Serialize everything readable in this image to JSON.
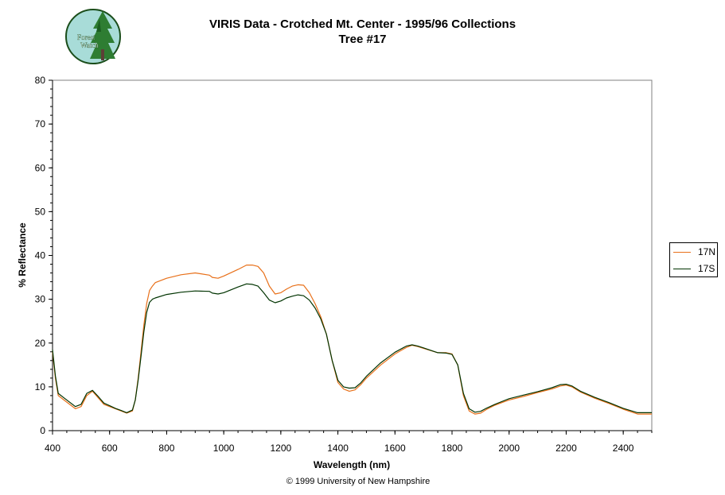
{
  "logo": {
    "text_top": "Forest",
    "text_bottom": "Watch",
    "ring_color": "#1a4d1a",
    "fill_color": "#a8dcd8"
  },
  "chart_data": {
    "type": "line",
    "title": "VIRIS Data - Crotched Mt. Center - 1995/96 Collections",
    "subtitle": "Tree #17",
    "xlabel": "Wavelength (nm)",
    "ylabel": "% Reflectance",
    "xlim": [
      400,
      2500
    ],
    "ylim": [
      0,
      80
    ],
    "xticks": [
      400,
      600,
      800,
      1000,
      1200,
      1400,
      1600,
      1800,
      2000,
      2200,
      2400
    ],
    "yticks": [
      0,
      10,
      20,
      30,
      40,
      50,
      60,
      70,
      80
    ],
    "grid": false,
    "legend_position": "right",
    "series": [
      {
        "name": "17N",
        "color": "#e8701a",
        "x": [
          400,
          410,
          420,
          440,
          460,
          480,
          500,
          520,
          540,
          560,
          580,
          600,
          620,
          640,
          660,
          680,
          690,
          700,
          710,
          720,
          730,
          740,
          750,
          760,
          800,
          850,
          900,
          950,
          960,
          980,
          1000,
          1050,
          1080,
          1100,
          1120,
          1140,
          1160,
          1180,
          1200,
          1220,
          1240,
          1260,
          1280,
          1300,
          1320,
          1340,
          1360,
          1380,
          1400,
          1420,
          1440,
          1460,
          1480,
          1500,
          1550,
          1600,
          1640,
          1660,
          1680,
          1700,
          1750,
          1780,
          1800,
          1820,
          1840,
          1860,
          1880,
          1900,
          1920,
          1950,
          2000,
          2050,
          2100,
          2150,
          2180,
          2200,
          2220,
          2250,
          2300,
          2350,
          2400,
          2450,
          2500
        ],
        "y": [
          18,
          12,
          8,
          7,
          6,
          5,
          5.5,
          8,
          9,
          7.5,
          6,
          5.5,
          5,
          4.5,
          4,
          4.5,
          7,
          12,
          18,
          24,
          29,
          32,
          33,
          33.8,
          34.8,
          35.6,
          36,
          35.5,
          35,
          34.8,
          35.3,
          36.8,
          37.8,
          37.8,
          37.5,
          36,
          33,
          31.2,
          31.5,
          32.3,
          33,
          33.3,
          33.2,
          31.5,
          29,
          26,
          22,
          16,
          11,
          9.5,
          9,
          9.3,
          10.5,
          12,
          15,
          17.5,
          19,
          19.5,
          19.2,
          18.8,
          17.8,
          17.8,
          17.5,
          15,
          8,
          4.5,
          3.8,
          4,
          4.8,
          5.8,
          7,
          7.8,
          8.7,
          9.5,
          10.2,
          10.4,
          10,
          8.8,
          7.4,
          6.2,
          4.9,
          3.8,
          3.8
        ]
      },
      {
        "name": "17S",
        "color": "#003300",
        "x": [
          400,
          410,
          420,
          440,
          460,
          480,
          500,
          520,
          540,
          560,
          580,
          600,
          620,
          640,
          660,
          680,
          690,
          700,
          710,
          720,
          730,
          740,
          750,
          760,
          800,
          850,
          900,
          950,
          960,
          980,
          1000,
          1050,
          1080,
          1100,
          1120,
          1140,
          1160,
          1180,
          1200,
          1220,
          1240,
          1260,
          1280,
          1300,
          1320,
          1340,
          1360,
          1380,
          1400,
          1420,
          1440,
          1460,
          1480,
          1500,
          1550,
          1600,
          1640,
          1660,
          1680,
          1700,
          1750,
          1780,
          1800,
          1820,
          1840,
          1860,
          1880,
          1900,
          1920,
          1950,
          2000,
          2050,
          2100,
          2150,
          2180,
          2200,
          2220,
          2250,
          2300,
          2350,
          2400,
          2450,
          2500
        ],
        "y": [
          18.5,
          12.5,
          8.5,
          7.5,
          6.5,
          5.5,
          6,
          8.5,
          9.2,
          7.8,
          6.3,
          5.7,
          5.1,
          4.6,
          4.1,
          4.7,
          7,
          11.5,
          17,
          22.5,
          27,
          29.3,
          30,
          30.3,
          31.1,
          31.6,
          31.9,
          31.8,
          31.4,
          31.2,
          31.5,
          32.8,
          33.5,
          33.4,
          33,
          31.5,
          29.8,
          29.2,
          29.6,
          30.3,
          30.7,
          31,
          30.8,
          29.8,
          28,
          25.5,
          22,
          16,
          11.5,
          10,
          9.7,
          9.8,
          10.9,
          12.4,
          15.5,
          17.9,
          19.3,
          19.6,
          19.3,
          18.9,
          17.8,
          17.7,
          17.4,
          15,
          8.5,
          5,
          4.2,
          4.4,
          5.1,
          6,
          7.3,
          8.1,
          8.9,
          9.8,
          10.5,
          10.6,
          10.2,
          9,
          7.6,
          6.4,
          5.1,
          4.1,
          4.1
        ]
      }
    ]
  },
  "footer": {
    "copyright": "© 1999 University of New Hampshire"
  }
}
